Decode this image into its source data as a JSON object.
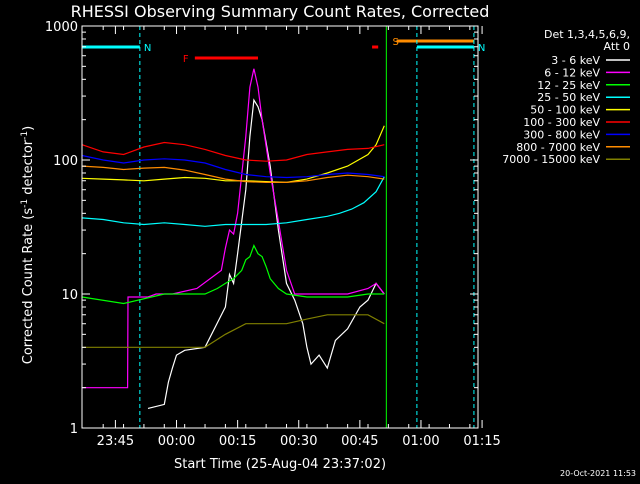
{
  "colors": {
    "background": "#000000",
    "text": "#ffffff",
    "axis": "#ffffff",
    "flag_night": "#00ffff",
    "flag_flare": "#ff0000",
    "flag_saa": "#ff8c00",
    "attenuator": "#00ff00"
  },
  "chart_data": {
    "type": "line",
    "title": "RHESSI Observing Summary Count Rates, Corrected",
    "xlabel": "Start Time (25-Aug-04 23:37:02)",
    "ylabel": "Corrected Count Rate (s",
    "ylabel_sup1": "-1",
    "ylabel_mid": " detector",
    "ylabel_sup2": "-1",
    "ylabel_end": ")",
    "y_scale": "log",
    "ylim": [
      1,
      1000
    ],
    "xlim": [
      -0.2,
      97
    ],
    "x_units": "minutes after 23:37:02",
    "x_ticks": [
      {
        "label": "23:45",
        "x": 8
      },
      {
        "label": "00:00",
        "x": 23
      },
      {
        "label": "00:15",
        "x": 38
      },
      {
        "label": "00:30",
        "x": 53
      },
      {
        "label": "00:45",
        "x": 68
      },
      {
        "label": "01:00",
        "x": 83
      },
      {
        "label": "01:15",
        "x": 98
      }
    ],
    "y_ticks": [
      {
        "label": "1",
        "value": 1
      },
      {
        "label": "10",
        "value": 10
      },
      {
        "label": "100",
        "value": 100
      },
      {
        "label": "1000",
        "value": 1000
      }
    ],
    "legend_header": [
      "Det 1,3,4,5,6,9,",
      "Att 0"
    ],
    "legend_position": "right",
    "footer_date": "20-Oct-2021 11:53",
    "series": [
      {
        "name": "3 - 6 keV",
        "color": "#ffffff",
        "x": [
          16,
          20,
          21,
          22,
          23,
          25,
          30,
          35,
          36,
          37,
          38,
          40,
          41,
          42,
          43,
          44,
          46,
          48,
          50,
          52,
          54,
          55,
          56,
          58,
          60,
          62,
          65,
          68,
          70,
          72,
          74
        ],
        "y": [
          1.4,
          1.5,
          2.2,
          2.8,
          3.5,
          3.8,
          4.0,
          8,
          14,
          12,
          20,
          60,
          150,
          280,
          250,
          200,
          90,
          30,
          12,
          9,
          6,
          4,
          3,
          3.5,
          2.8,
          4.5,
          5.5,
          8,
          9,
          12,
          10
        ]
      },
      {
        "name": "6 - 12 keV",
        "color": "#ff00ff",
        "x": [
          -0.2,
          8,
          10,
          11,
          11.1,
          16,
          18,
          22,
          28,
          34,
          35,
          36,
          37,
          38,
          40,
          41,
          42,
          43,
          44,
          46,
          48,
          50,
          52,
          56,
          60,
          65,
          70,
          72,
          74
        ],
        "y": [
          2.0,
          2.0,
          2.0,
          2.0,
          9.5,
          9.5,
          10,
          10,
          11,
          15,
          22,
          30,
          28,
          40,
          150,
          350,
          480,
          350,
          200,
          80,
          35,
          15,
          10,
          10,
          10,
          10,
          11,
          12,
          10
        ]
      },
      {
        "name": "12 - 25 keV",
        "color": "#00ff00",
        "x": [
          -0.2,
          10,
          20,
          30,
          33,
          35,
          37,
          39,
          40,
          41,
          42,
          43,
          44,
          45,
          46,
          48,
          50,
          55,
          60,
          65,
          70,
          74
        ],
        "y": [
          9.5,
          8.5,
          10,
          10,
          11,
          12,
          13,
          15,
          18,
          19,
          23,
          20,
          19,
          16,
          13,
          11,
          10,
          9.5,
          9.5,
          9.5,
          10,
          10
        ]
      },
      {
        "name": "25 - 50 keV",
        "color": "#00ffff",
        "x": [
          -0.2,
          5,
          10,
          15,
          20,
          25,
          30,
          35,
          40,
          45,
          50,
          55,
          60,
          63,
          66,
          69,
          72,
          74
        ],
        "y": [
          37,
          36,
          34,
          33,
          34,
          33,
          32,
          33,
          33,
          33,
          34,
          36,
          38,
          40,
          43,
          48,
          58,
          75
        ]
      },
      {
        "name": "50 - 100 keV",
        "color": "#ffff00",
        "x": [
          -0.2,
          5,
          10,
          15,
          20,
          25,
          30,
          35,
          40,
          45,
          50,
          55,
          60,
          65,
          70,
          72,
          74
        ],
        "y": [
          73,
          72,
          71,
          70,
          72,
          74,
          73,
          70,
          70,
          69,
          68,
          72,
          80,
          90,
          110,
          130,
          180
        ]
      },
      {
        "name": "100 - 300 keV",
        "color": "#ff0000",
        "x": [
          -0.2,
          5,
          10,
          15,
          20,
          25,
          30,
          35,
          40,
          45,
          50,
          55,
          60,
          65,
          70,
          74
        ],
        "y": [
          130,
          115,
          110,
          125,
          135,
          130,
          120,
          108,
          100,
          98,
          100,
          110,
          115,
          120,
          122,
          130
        ]
      },
      {
        "name": "300 - 800 keV",
        "color": "#0000ff",
        "x": [
          -0.2,
          5,
          10,
          15,
          20,
          25,
          30,
          35,
          40,
          45,
          50,
          55,
          60,
          65,
          70,
          74
        ],
        "y": [
          108,
          100,
          95,
          100,
          102,
          100,
          95,
          85,
          78,
          75,
          74,
          75,
          78,
          80,
          78,
          75
        ]
      },
      {
        "name": "800 - 7000 keV",
        "color": "#ff8c00",
        "x": [
          -0.2,
          5,
          10,
          15,
          20,
          25,
          30,
          35,
          40,
          45,
          50,
          55,
          60,
          65,
          70,
          74
        ],
        "y": [
          90,
          88,
          85,
          87,
          88,
          84,
          78,
          72,
          69,
          68,
          68,
          70,
          74,
          77,
          75,
          72
        ]
      },
      {
        "name": "7000 - 15000 keV",
        "color": "#808000",
        "x": [
          -0.2,
          10,
          20,
          25,
          30,
          35,
          40,
          45,
          50,
          55,
          60,
          65,
          70,
          74
        ],
        "y": [
          4,
          4,
          4,
          4,
          4,
          5,
          6,
          6,
          6,
          6.5,
          7,
          7,
          7,
          6
        ]
      }
    ],
    "flags": [
      {
        "label": "N",
        "color": "#00ffff",
        "x0": -0.2,
        "x1": 14
      },
      {
        "label": "N",
        "color": "#00ffff",
        "x0": 82,
        "x1": 96
      },
      {
        "label": "F",
        "color": "#ff0000",
        "x0": 27.5,
        "x1": 43
      },
      {
        "label": "",
        "color": "#ff0000",
        "x0": 71,
        "x1": 72.5
      },
      {
        "label": "S",
        "color": "#ff8c00",
        "x0": 77,
        "x1": 96
      }
    ]
  }
}
